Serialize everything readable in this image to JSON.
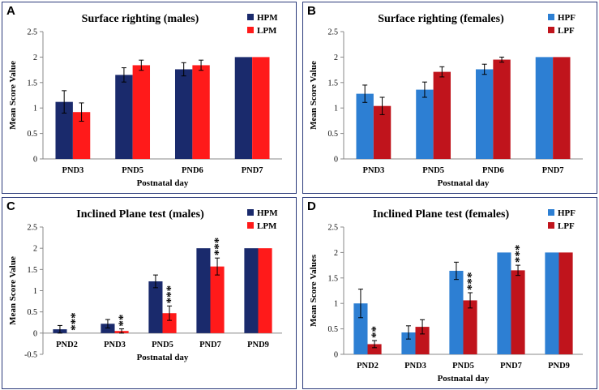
{
  "colors": {
    "HPM": "#1a2a6c",
    "LPM": "#ff1a1a",
    "HPF": "#2d7fd3",
    "LPF": "#c0141c",
    "axis": "#888888",
    "border": "#2b3a7a"
  },
  "chart_data": [
    {
      "panel": "A",
      "type": "bar",
      "title": "Surface righting (males)",
      "xlabel": "Postnatal day",
      "ylabel": "Mean Score Value",
      "ylim": [
        0,
        2.5
      ],
      "yticks": [
        "0",
        "0.5",
        "1",
        "1.5",
        "2",
        "2.5"
      ],
      "legend_position": "top-right",
      "categories": [
        "PND3",
        "PND5",
        "PND6",
        "PND7"
      ],
      "series": [
        {
          "name": "HPM",
          "color_key": "HPM",
          "values": [
            1.12,
            1.65,
            1.76,
            2.0
          ],
          "errors": [
            0.22,
            0.14,
            0.13,
            0.0
          ],
          "sig": [
            "",
            "",
            "",
            ""
          ]
        },
        {
          "name": "LPM",
          "color_key": "LPM",
          "values": [
            0.92,
            1.84,
            1.84,
            2.0
          ],
          "errors": [
            0.18,
            0.1,
            0.1,
            0.0
          ],
          "sig": [
            "",
            "",
            "",
            ""
          ]
        }
      ]
    },
    {
      "panel": "B",
      "type": "bar",
      "title": "Surface righting (females)",
      "xlabel": "Postnatal day",
      "ylabel": "Mean Score Value",
      "ylim": [
        0,
        2.5
      ],
      "yticks": [
        "0",
        "0.5",
        "1",
        "1.5",
        "2",
        "2.5"
      ],
      "legend_position": "top-right",
      "categories": [
        "PND3",
        "PND5",
        "PND6",
        "PND7"
      ],
      "series": [
        {
          "name": "HPF",
          "color_key": "HPF",
          "values": [
            1.28,
            1.36,
            1.76,
            2.0
          ],
          "errors": [
            0.17,
            0.15,
            0.1,
            0.0
          ],
          "sig": [
            "",
            "",
            "",
            ""
          ]
        },
        {
          "name": "LPF",
          "color_key": "LPF",
          "values": [
            1.04,
            1.71,
            1.95,
            2.0
          ],
          "errors": [
            0.17,
            0.1,
            0.05,
            0.0
          ],
          "sig": [
            "",
            "",
            "",
            ""
          ]
        }
      ]
    },
    {
      "panel": "C",
      "type": "bar",
      "title": "Inclined Plane test  (males)",
      "xlabel": "Postnatal day",
      "ylabel": "Mean Score Value",
      "ylim": [
        -0.5,
        2.5
      ],
      "yticks": [
        "-0.5",
        "0",
        "0.5",
        "1",
        "1.5",
        "2",
        "2.5"
      ],
      "legend_position": "top-right",
      "categories": [
        "PND2",
        "PND3",
        "PND5",
        "PND7",
        "PND9"
      ],
      "series": [
        {
          "name": "HPM",
          "color_key": "HPM",
          "values": [
            0.09,
            0.22,
            1.22,
            2.0,
            2.0
          ],
          "errors": [
            0.09,
            0.1,
            0.15,
            0.0,
            0.0
          ],
          "sig": [
            "",
            "",
            "",
            "",
            ""
          ]
        },
        {
          "name": "LPM",
          "color_key": "LPM",
          "values": [
            0.0,
            0.05,
            0.47,
            1.57,
            2.0
          ],
          "errors": [
            0.0,
            0.05,
            0.17,
            0.2,
            0.0
          ],
          "sig": [
            "***",
            "**",
            "***",
            "***",
            ""
          ]
        }
      ]
    },
    {
      "panel": "D",
      "type": "bar",
      "title": "Inclined Plane test (females)",
      "xlabel": "Postnatal day",
      "ylabel": "Mean Score Values",
      "ylim": [
        0,
        2.5
      ],
      "yticks": [
        "0",
        "0.5",
        "1",
        "1.5",
        "2",
        "2.5"
      ],
      "legend_position": "top-right",
      "categories": [
        "PND2",
        "PND3",
        "PND5",
        "PND7",
        "PND9"
      ],
      "series": [
        {
          "name": "HPF",
          "color_key": "HPF",
          "values": [
            1.0,
            0.43,
            1.64,
            2.0,
            2.0
          ],
          "errors": [
            0.28,
            0.13,
            0.17,
            0.0,
            0.0
          ],
          "sig": [
            "",
            "",
            "",
            "",
            ""
          ]
        },
        {
          "name": "LPF",
          "color_key": "LPF",
          "values": [
            0.2,
            0.54,
            1.06,
            1.65,
            2.0
          ],
          "errors": [
            0.07,
            0.14,
            0.15,
            0.1,
            0.0
          ],
          "sig": [
            "**",
            "",
            "***",
            "***",
            ""
          ]
        }
      ]
    }
  ]
}
